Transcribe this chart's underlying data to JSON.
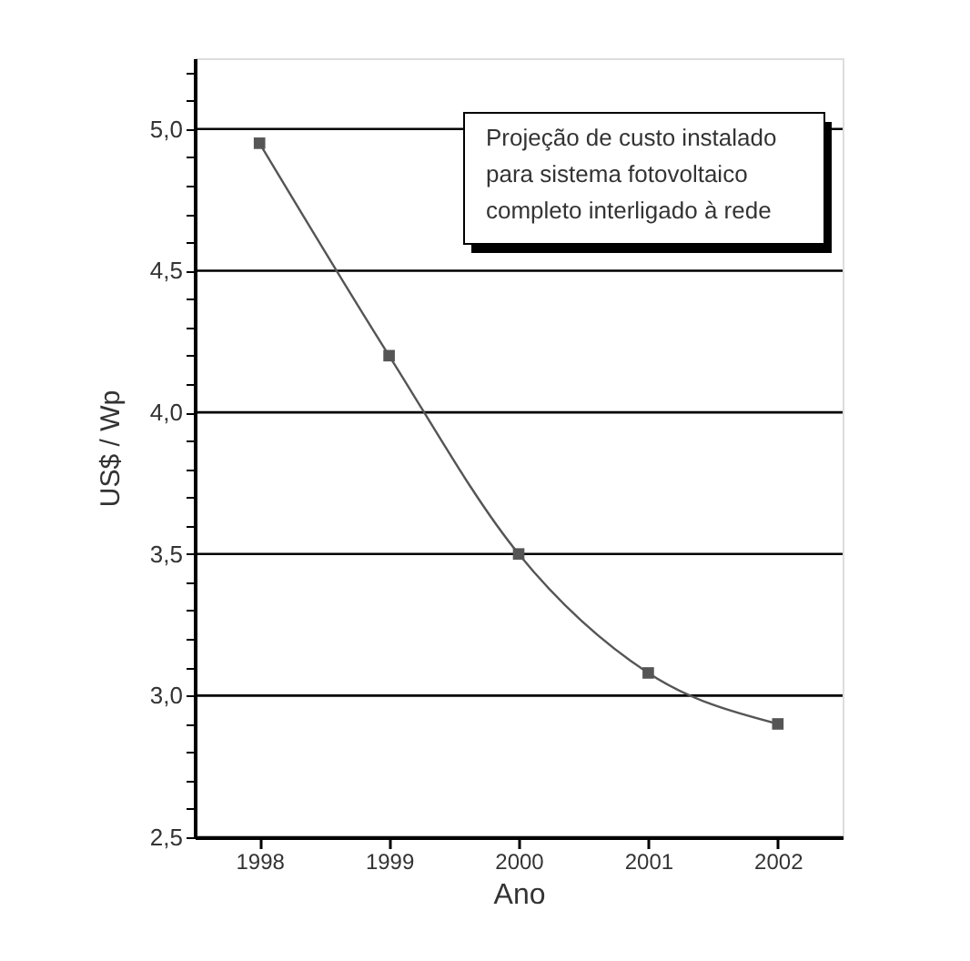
{
  "chart_data": {
    "type": "line",
    "x": [
      1998,
      1999,
      2000,
      2001,
      2002
    ],
    "values": [
      4.95,
      4.2,
      3.5,
      3.08,
      2.9
    ],
    "color": "#555555",
    "marker": "square",
    "line_style": "solid",
    "xlabel": "Ano",
    "ylabel": "US$ / Wp",
    "xlim": [
      1997.5,
      2002.5
    ],
    "xticks": [
      1998,
      1999,
      2000,
      2001,
      2002
    ],
    "ylim": [
      2.5,
      5.25
    ],
    "yticks": [
      {
        "value": 2.5,
        "label": "2,5"
      },
      {
        "value": 2.6,
        "label": null
      },
      {
        "value": 2.7,
        "label": null
      },
      {
        "value": 2.8,
        "label": null
      },
      {
        "value": 2.9,
        "label": null
      },
      {
        "value": 3.0,
        "label": "3,0"
      },
      {
        "value": 3.1,
        "label": null
      },
      {
        "value": 3.2,
        "label": null
      },
      {
        "value": 3.3,
        "label": null
      },
      {
        "value": 3.4,
        "label": null
      },
      {
        "value": 3.5,
        "label": "3,5"
      },
      {
        "value": 3.6,
        "label": null
      },
      {
        "value": 3.7,
        "label": null
      },
      {
        "value": 3.8,
        "label": null
      },
      {
        "value": 3.9,
        "label": null
      },
      {
        "value": 4.0,
        "label": "4,0"
      },
      {
        "value": 4.1,
        "label": null
      },
      {
        "value": 4.2,
        "label": null
      },
      {
        "value": 4.3,
        "label": null
      },
      {
        "value": 4.4,
        "label": null
      },
      {
        "value": 4.5,
        "label": "4,5"
      },
      {
        "value": 4.6,
        "label": null
      },
      {
        "value": 4.7,
        "label": null
      },
      {
        "value": 4.8,
        "label": null
      },
      {
        "value": 4.9,
        "label": null
      },
      {
        "value": 5.0,
        "label": "5,0"
      },
      {
        "value": 5.1,
        "label": null
      },
      {
        "value": 5.2,
        "label": null
      }
    ],
    "grid": "y",
    "annotations": [
      "Projeção de custo instalado\npara sistema fotovoltaico\ncompleto interligado à rede"
    ]
  }
}
